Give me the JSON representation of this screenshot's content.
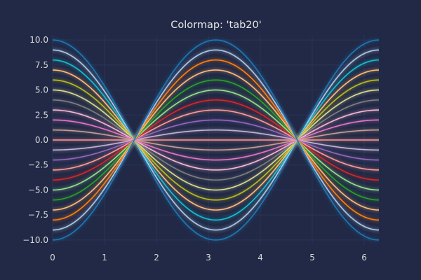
{
  "chart_data": {
    "type": "line",
    "title": "Colormap: 'tab20'",
    "xlabel": "",
    "ylabel": "",
    "xlim": [
      0,
      6.283
    ],
    "ylim": [
      -10.5,
      10.5
    ],
    "x_ticks": [
      0,
      1,
      2,
      3,
      4,
      5,
      6
    ],
    "y_ticks": [
      -10.0,
      -7.5,
      -5.0,
      -2.5,
      0.0,
      2.5,
      5.0,
      7.5,
      10.0
    ],
    "x_tick_labels": [
      "0",
      "1",
      "2",
      "3",
      "4",
      "5",
      "6"
    ],
    "y_tick_labels": [
      "−10.0",
      "−7.5",
      "−5.0",
      "−2.5",
      "0.0",
      "2.5",
      "5.0",
      "7.5",
      "10.0"
    ],
    "grid": true,
    "legend": "none",
    "function": "y = A * cos(x), x in [0, 2π]",
    "series": [
      {
        "amplitude": 10,
        "color": "#1f77b4"
      },
      {
        "amplitude": 9,
        "color": "#aec7e8"
      },
      {
        "amplitude": 8,
        "color": "#17becf"
      },
      {
        "amplitude": 7,
        "color": "#ffbb78"
      },
      {
        "amplitude": 6,
        "color": "#bcbd22"
      },
      {
        "amplitude": 5,
        "color": "#dbdb8d"
      },
      {
        "amplitude": 4,
        "color": "#7f7f7f"
      },
      {
        "amplitude": 3,
        "color": "#f7b6d2"
      },
      {
        "amplitude": 2,
        "color": "#e377c2"
      },
      {
        "amplitude": 1,
        "color": "#c49c94"
      },
      {
        "amplitude": 0,
        "color": "#ff9896"
      },
      {
        "amplitude": -1,
        "color": "#c5b0d5"
      },
      {
        "amplitude": -2,
        "color": "#9467bd"
      },
      {
        "amplitude": -3,
        "color": "#ff9896"
      },
      {
        "amplitude": -4,
        "color": "#d62728"
      },
      {
        "amplitude": -5,
        "color": "#98df8a"
      },
      {
        "amplitude": -6,
        "color": "#2ca02c"
      },
      {
        "amplitude": -7,
        "color": "#ffbb78"
      },
      {
        "amplitude": -8,
        "color": "#ff7f0e"
      },
      {
        "amplitude": -9,
        "color": "#aec7e8"
      },
      {
        "amplitude": -10,
        "color": "#1f77b4"
      }
    ],
    "colors": {
      "background": "#212946",
      "grid": "#2A3459",
      "text": "#e6e6e6",
      "tick_text": "#d8d8d8"
    }
  }
}
